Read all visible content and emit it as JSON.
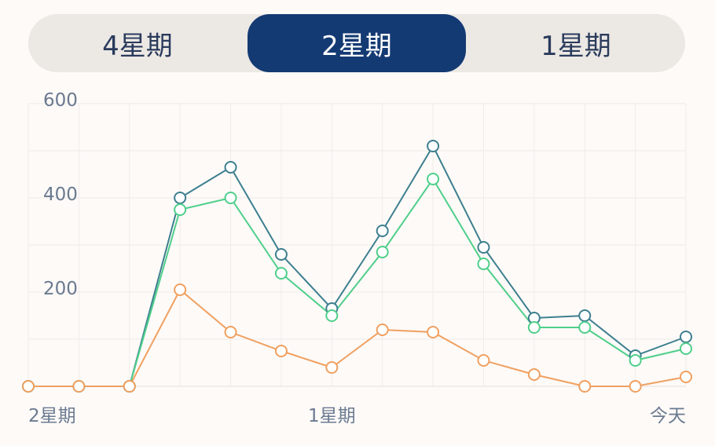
{
  "range_tabs": {
    "items": [
      {
        "label": "4星期",
        "active": false
      },
      {
        "label": "2星期",
        "active": true
      },
      {
        "label": "1星期",
        "active": false
      }
    ],
    "active_color": "#143a73"
  },
  "chart_data": {
    "type": "line",
    "x": [
      1,
      2,
      3,
      4,
      5,
      6,
      7,
      8,
      9,
      10,
      11,
      12,
      13,
      14
    ],
    "x_tick_labels": [
      {
        "x": 1,
        "label": "2星期"
      },
      {
        "x": 7,
        "label": "1星期"
      },
      {
        "x": 14,
        "label": "今天"
      }
    ],
    "ylim": [
      0,
      600
    ],
    "y_ticks": [
      200,
      400,
      600
    ],
    "grid": true,
    "series": [
      {
        "color": "#3d7f8f",
        "values": [
          0,
          0,
          0,
          400,
          465,
          280,
          165,
          330,
          510,
          295,
          145,
          150,
          65,
          105
        ]
      },
      {
        "color": "#4fcf8a",
        "values": [
          0,
          0,
          0,
          375,
          400,
          240,
          150,
          285,
          440,
          260,
          125,
          125,
          55,
          80
        ]
      },
      {
        "color": "#f0a060",
        "values": [
          0,
          0,
          0,
          205,
          115,
          75,
          40,
          120,
          115,
          55,
          25,
          0,
          0,
          20
        ]
      }
    ]
  }
}
